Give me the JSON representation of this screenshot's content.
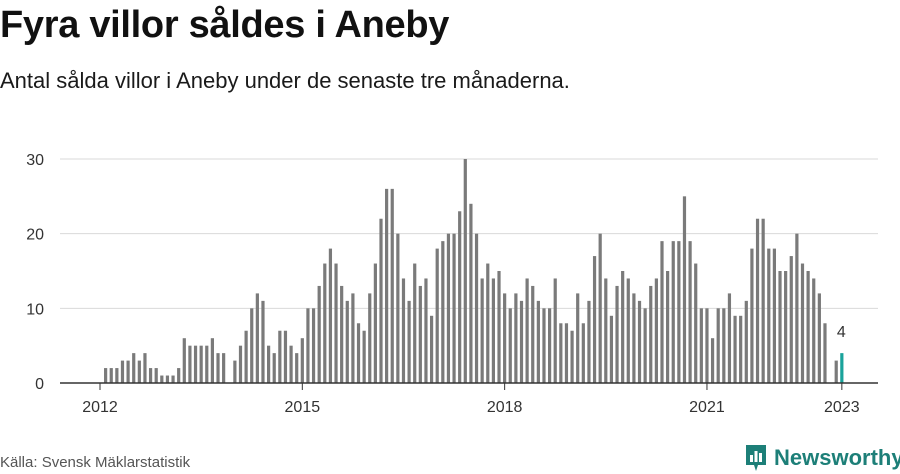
{
  "header": {
    "title": "Fyra villor såldes i Aneby",
    "subtitle": "Antal sålda villor i Aneby under de senaste tre månaderna."
  },
  "footer": {
    "source": "Källa: Svensk Mäklarstatistik",
    "brand": "Newsworthy"
  },
  "colors": {
    "bar": "#7a7a7a",
    "highlight": "#1aa39b",
    "grid": "#d9d9d9",
    "axis": "#333333",
    "brand": "#1d7f78"
  },
  "chart_data": {
    "type": "bar",
    "title": "Fyra villor såldes i Aneby",
    "xlabel": "",
    "ylabel": "",
    "ylim": [
      0,
      30
    ],
    "yticks": [
      0,
      10,
      20,
      30
    ],
    "xticks": [
      {
        "label": "2012",
        "index": 0
      },
      {
        "label": "2015",
        "index": 36
      },
      {
        "label": "2018",
        "index": 72
      },
      {
        "label": "2021",
        "index": 108
      },
      {
        "label": "2023",
        "index": 132
      }
    ],
    "start_period": "2012-01",
    "end_period": "2023-01",
    "values": [
      0,
      2,
      2,
      2,
      3,
      3,
      4,
      3,
      4,
      2,
      2,
      1,
      1,
      1,
      2,
      6,
      5,
      5,
      5,
      5,
      6,
      4,
      4,
      0,
      3,
      5,
      7,
      10,
      12,
      11,
      5,
      4,
      7,
      7,
      5,
      4,
      6,
      10,
      10,
      13,
      16,
      18,
      16,
      13,
      11,
      12,
      8,
      7,
      12,
      16,
      22,
      26,
      26,
      20,
      14,
      11,
      16,
      13,
      14,
      9,
      18,
      19,
      20,
      20,
      23,
      30,
      24,
      20,
      14,
      16,
      14,
      15,
      12,
      10,
      12,
      11,
      14,
      13,
      11,
      10,
      10,
      14,
      8,
      8,
      7,
      12,
      8,
      11,
      17,
      20,
      14,
      9,
      13,
      15,
      14,
      12,
      11,
      10,
      13,
      14,
      19,
      15,
      19,
      19,
      25,
      19,
      16,
      10,
      10,
      6,
      10,
      10,
      12,
      9,
      9,
      11,
      18,
      22,
      22,
      18,
      18,
      15,
      15,
      17,
      20,
      16,
      15,
      14,
      12,
      8,
      0,
      3,
      4
    ],
    "highlight_index": 132,
    "annotation": {
      "text": "4",
      "index": 132,
      "value": 4
    }
  }
}
